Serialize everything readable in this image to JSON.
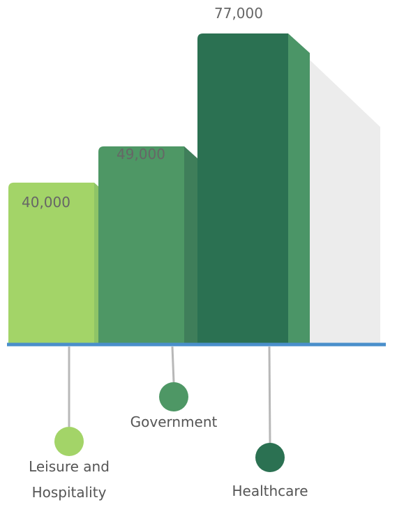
{
  "chart_data": {
    "type": "bar",
    "title": "",
    "xlabel": "",
    "ylabel": "",
    "categories": [
      "Leisure and Hospitality",
      "Government",
      "Healthcare"
    ],
    "category_lines": [
      [
        "Leisure and",
        "Hospitality"
      ],
      [
        "Government"
      ],
      [
        "Healthcare"
      ]
    ],
    "values": [
      40000,
      49000,
      77000
    ],
    "value_labels": [
      "40,000",
      "49,000",
      "77,000"
    ],
    "colors": {
      "bars": [
        "#a3d468",
        "#4e9765",
        "#2b7152"
      ],
      "sides": [
        "#8ec467",
        "#3f7e5a",
        "#4b9567"
      ],
      "shadow": "#ececec",
      "baseline": "#4a8fcb",
      "connector": "#b8b8b8",
      "value_text": "#666666",
      "label_text": "#555555"
    }
  }
}
